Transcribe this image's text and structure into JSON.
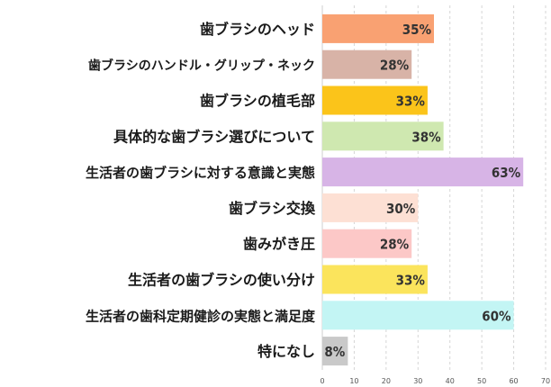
{
  "chart_data": {
    "type": "bar",
    "orientation": "horizontal",
    "categories": [
      "歯ブラシのヘッド",
      "歯ブラシのハンドル・グリップ・ネック",
      "歯ブラシの植毛部",
      "具体的な歯ブラシ選びについて",
      "生活者の歯ブラシに対する意識と実態",
      "歯ブラシ交換",
      "歯みがき圧",
      "生活者の歯ブラシの使い分け",
      "生活者の歯科定期健診の実態と満足度",
      "特になし"
    ],
    "values": [
      35,
      28,
      33,
      38,
      63,
      30,
      28,
      33,
      60,
      8
    ],
    "value_labels": [
      "35%",
      "28%",
      "33%",
      "38%",
      "63%",
      "30%",
      "28%",
      "33%",
      "60%",
      "8%"
    ],
    "colors": [
      "#f9a172",
      "#d8b3a7",
      "#fbc41a",
      "#cfe8b0",
      "#d7b4e6",
      "#fde0d4",
      "#fcc8c7",
      "#fbe45c",
      "#c3f5f4",
      "#c9c9c9"
    ],
    "xlim": [
      0,
      70
    ],
    "xticks": [
      "0",
      "10",
      "20",
      "30",
      "40",
      "50",
      "60",
      "70"
    ],
    "grid": true,
    "title": "",
    "xlabel": "",
    "ylabel": ""
  }
}
